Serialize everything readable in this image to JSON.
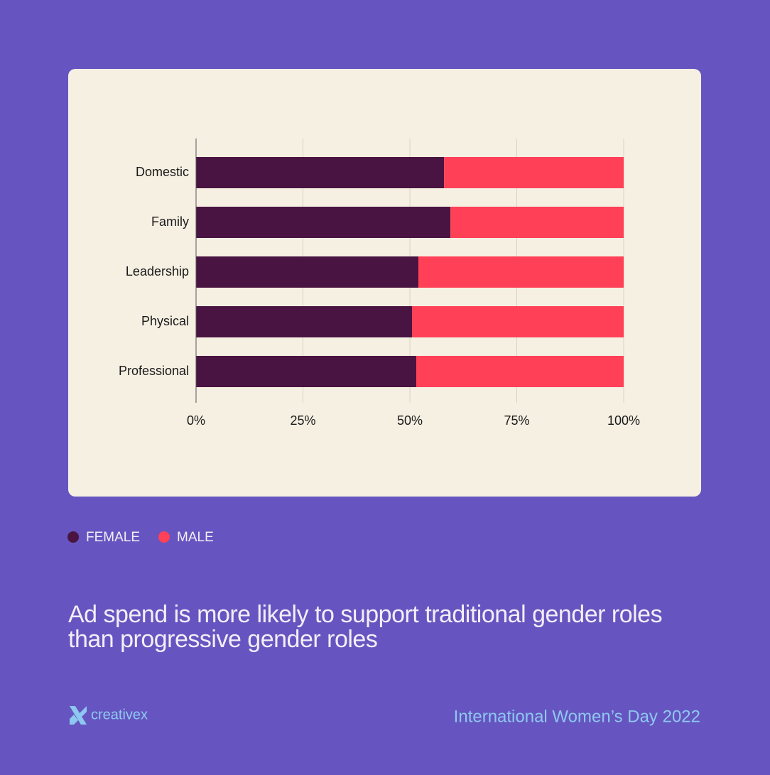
{
  "chart_data": {
    "type": "stacked-bar-horizontal",
    "categories": [
      "Domestic",
      "Family",
      "Leadership",
      "Physical",
      "Professional"
    ],
    "series": [
      {
        "name": "FEMALE",
        "color": "#4a1442",
        "values": [
          58,
          59.5,
          52,
          50.5,
          51.5
        ]
      },
      {
        "name": "MALE",
        "color": "#ff4057",
        "values": [
          42,
          40.5,
          48,
          49.5,
          48.5
        ]
      }
    ],
    "xlim": [
      0,
      100
    ],
    "xticks": [
      {
        "value": 0,
        "label": "0%"
      },
      {
        "value": 25,
        "label": "25%"
      },
      {
        "value": 50,
        "label": "50%"
      },
      {
        "value": 75,
        "label": "75%"
      },
      {
        "value": 100,
        "label": "100%"
      }
    ],
    "grid": true,
    "headline": "Ad spend is more likely to support traditional gender roles than progressive gender roles"
  },
  "footer": {
    "brand": "creativex",
    "event": "International Women’s Day 2022"
  }
}
